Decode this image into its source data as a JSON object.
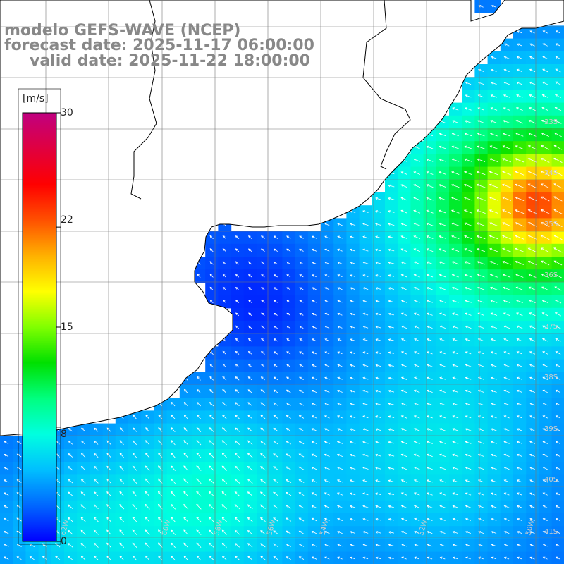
{
  "title": {
    "line1": "modelo GEFS-WAVE (NCEP)",
    "line2": "forecast date: 2025-11-17 06:00:00",
    "line3": "valid date: 2025-11-22 18:00:00"
  },
  "colorbar": {
    "unit": "[m/s]",
    "min": 0,
    "max": 30,
    "tick_labels": [
      "30",
      "22",
      "15",
      "8",
      "0"
    ],
    "tick_values": [
      30,
      22,
      15,
      8,
      0
    ],
    "colors": [
      "#0000ff",
      "#0066ff",
      "#00bfff",
      "#00ffe0",
      "#00ff80",
      "#00e000",
      "#80ff00",
      "#ffff00",
      "#ffb000",
      "#ff5000",
      "#ff0000",
      "#e00040",
      "#c00080"
    ]
  },
  "map": {
    "lat_labels": [
      "33S",
      "34S",
      "35S",
      "36S",
      "37S",
      "38S",
      "39S",
      "40S",
      "41S"
    ],
    "lon_labels": [
      "62W",
      "60W",
      "58W",
      "56W",
      "54W",
      "52W",
      "50W"
    ],
    "land_color": "#ffffff",
    "coast_color": "#000000",
    "grid_color": "#777777",
    "arrow_color": "#ffffff"
  }
}
